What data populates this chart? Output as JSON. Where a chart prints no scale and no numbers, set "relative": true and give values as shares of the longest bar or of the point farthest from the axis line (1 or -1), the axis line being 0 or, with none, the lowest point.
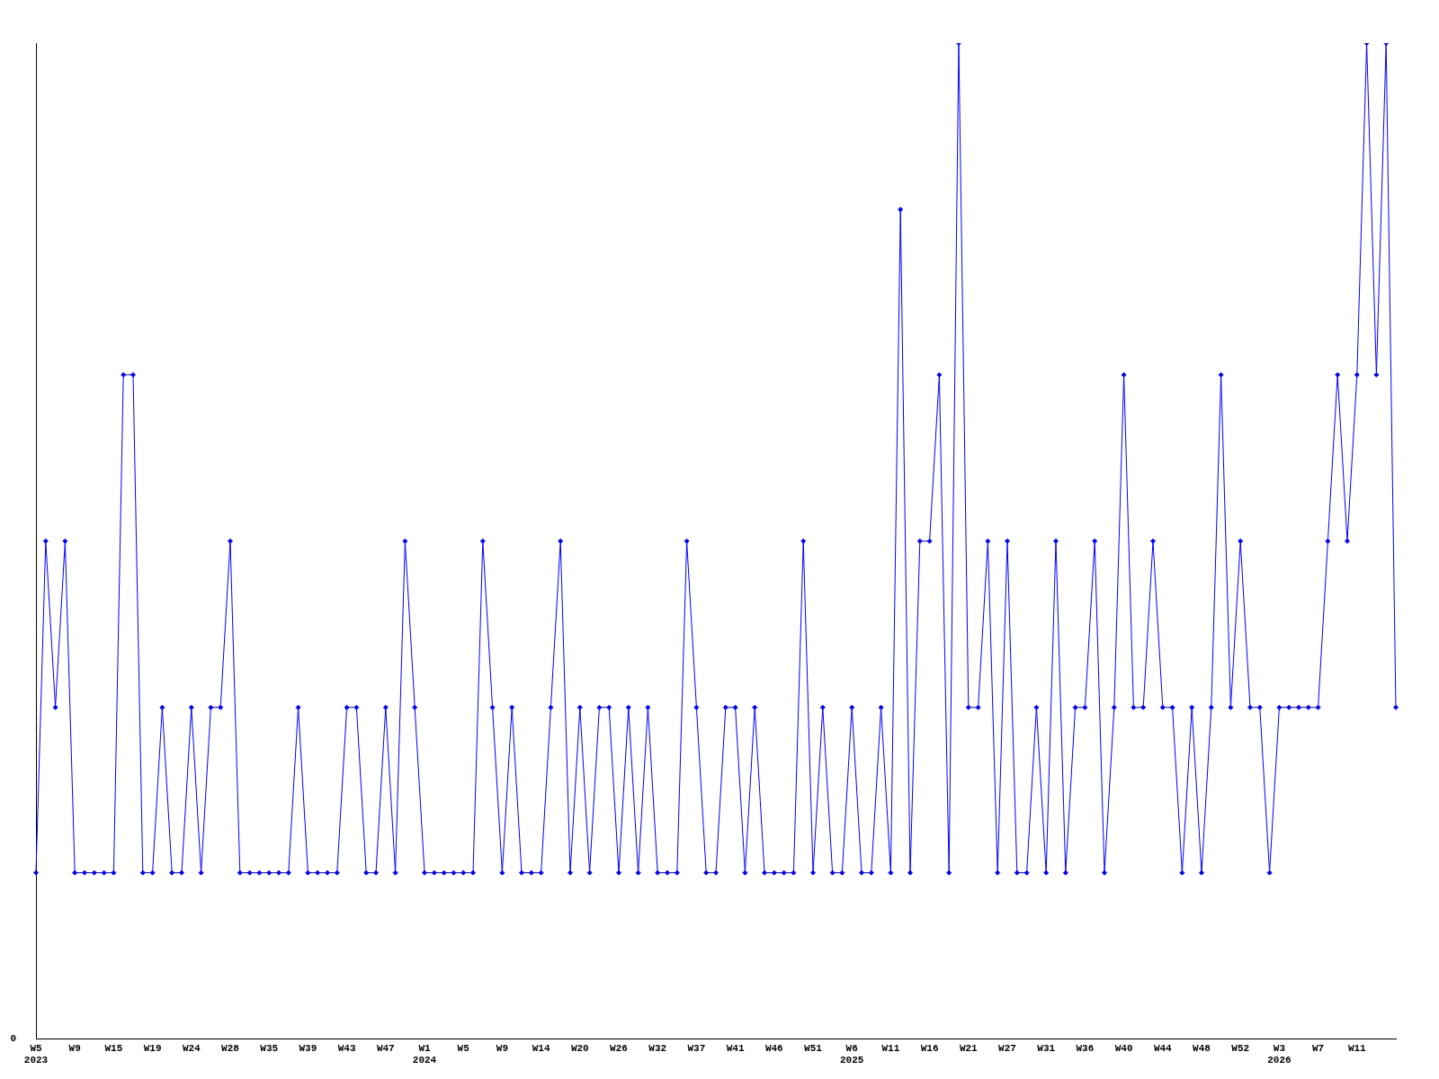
{
  "chart_data": {
    "type": "line",
    "relative": true,
    "marker": "diamond",
    "grid": false,
    "legend": false,
    "annotations": [
      "0"
    ],
    "categories": [
      "W5\n2023",
      null,
      null,
      null,
      "W9",
      null,
      null,
      null,
      "W15",
      null,
      null,
      null,
      "W19",
      null,
      null,
      null,
      "W24",
      null,
      null,
      null,
      "W28",
      null,
      null,
      null,
      "W35",
      null,
      null,
      null,
      "W39",
      null,
      null,
      null,
      "W43",
      null,
      null,
      null,
      "W47",
      null,
      null,
      null,
      "W1\n2024",
      null,
      null,
      null,
      "W5",
      null,
      null,
      null,
      "W9",
      null,
      null,
      null,
      "W14",
      null,
      null,
      null,
      "W20",
      null,
      null,
      null,
      "W26",
      null,
      null,
      null,
      "W32",
      null,
      null,
      null,
      "W37",
      null,
      null,
      null,
      "W41",
      null,
      null,
      null,
      "W46",
      null,
      null,
      null,
      "W51",
      null,
      null,
      null,
      "W6\n2025",
      null,
      null,
      null,
      "W11",
      null,
      null,
      null,
      "W16",
      null,
      null,
      null,
      "W21",
      null,
      null,
      null,
      "W27",
      null,
      null,
      null,
      "W31",
      null,
      null,
      null,
      "W36",
      null,
      null,
      null,
      "W40",
      null,
      null,
      null,
      "W44",
      null,
      null,
      null,
      "W48",
      null,
      null,
      null,
      "W52",
      null,
      null,
      null,
      "W3\n2026",
      null,
      null,
      null,
      "W7",
      null,
      null,
      null,
      "W11",
      null,
      null,
      null,
      null
    ],
    "series": [
      {
        "color": "#0000ff",
        "values": [
          0.167,
          0.5,
          0.333,
          0.5,
          0.167,
          0.167,
          0.167,
          0.167,
          0.167,
          0.667,
          0.667,
          0.167,
          0.167,
          0.333,
          0.167,
          0.167,
          0.333,
          0.167,
          0.333,
          0.333,
          0.5,
          0.167,
          0.167,
          0.167,
          0.167,
          0.167,
          0.167,
          0.333,
          0.167,
          0.167,
          0.167,
          0.167,
          0.333,
          0.333,
          0.167,
          0.167,
          0.333,
          0.167,
          0.5,
          0.333,
          0.167,
          0.167,
          0.167,
          0.167,
          0.167,
          0.167,
          0.5,
          0.333,
          0.167,
          0.333,
          0.167,
          0.167,
          0.167,
          0.333,
          0.5,
          0.167,
          0.333,
          0.167,
          0.333,
          0.333,
          0.167,
          0.333,
          0.167,
          0.333,
          0.167,
          0.167,
          0.167,
          0.5,
          0.333,
          0.167,
          0.167,
          0.333,
          0.333,
          0.167,
          0.333,
          0.167,
          0.167,
          0.167,
          0.167,
          0.5,
          0.167,
          0.333,
          0.167,
          0.167,
          0.333,
          0.167,
          0.167,
          0.333,
          0.167,
          0.833,
          0.167,
          0.5,
          0.5,
          0.667,
          0.167,
          1,
          0.333,
          0.333,
          0.5,
          0.167,
          0.5,
          0.167,
          0.167,
          0.333,
          0.167,
          0.5,
          0.167,
          0.333,
          0.333,
          0.5,
          0.167,
          0.333,
          0.667,
          0.333,
          0.333,
          0.5,
          0.333,
          0.333,
          0.167,
          0.333,
          0.167,
          0.333,
          0.667,
          0.333,
          0.5,
          0.333,
          0.333,
          0.167,
          0.333,
          0.333,
          0.333,
          0.333,
          0.333,
          0.5,
          0.667,
          0.5,
          0.667,
          1,
          0.667,
          1,
          0.333
        ]
      }
    ]
  }
}
